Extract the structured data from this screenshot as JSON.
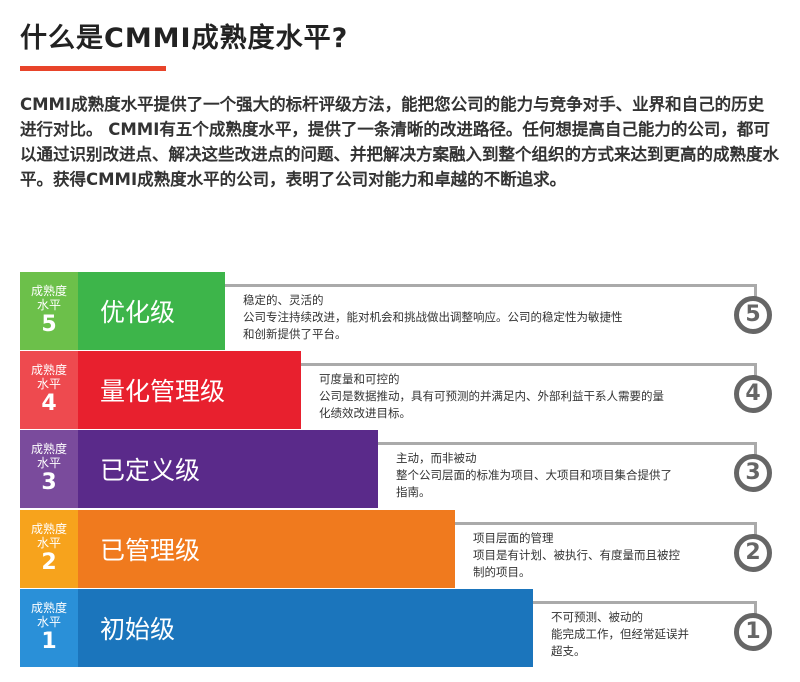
{
  "title": "什么是CMMI成熟度水平?",
  "intro": "CMMI成熟度水平提供了一个强大的标杆评级方法，能把您公司的能力与竞争对手、业界和自己的历史进行对比。 CMMI有五个成熟度水平，提供了一条清晰的改进路径。任何想提高自己能力的公司，都可以通过识别改进点、解决这些改进点的问题、并把解决方案融入到整个组织的方式来达到更高的成熟度水平。获得CMMI成熟度水平的公司，表明了公司对能力和卓越的不断追求。",
  "levels": [
    {
      "tag": "成熟度水平",
      "num": "5",
      "name": "优化级",
      "desc": [
        "稳定的、灵活的",
        "公司专注持续改进，能对机会和挑战做出调整响应。公司的稳定性为敏捷性",
        "和创新提供了平台。"
      ],
      "color": "#3db54a",
      "light": "#6cc04a"
    },
    {
      "tag": "成熟度水平",
      "num": "4",
      "name": "量化管理级",
      "desc": [
        "可度量和可控的",
        "公司是数据推动，具有可预测的并满足内、外部利益干系人需要的量",
        "化绩效改进目标。"
      ],
      "color": "#e8202e",
      "light": "#ee4a4f"
    },
    {
      "tag": "成熟度水平",
      "num": "3",
      "name": "已定义级",
      "desc": [
        "主动，而非被动",
        "整个公司层面的标准为项目、大项目和项目集合提供了",
        "指南。"
      ],
      "color": "#5a2a8a",
      "light": "#7a4b9c"
    },
    {
      "tag": "成熟度水平",
      "num": "2",
      "name": "已管理级",
      "desc": [
        "项目层面的管理",
        "项目是有计划、被执行、有度量而且被控",
        "制的项目。"
      ],
      "color": "#f07a1e",
      "light": "#f7a31c"
    },
    {
      "tag": "成熟度水平",
      "num": "1",
      "name": "初始级",
      "desc": [
        "不可预测、被动的",
        "能完成工作，但经常延误并",
        "超支。"
      ],
      "color": "#1b75bc",
      "light": "#2a90d8"
    }
  ]
}
